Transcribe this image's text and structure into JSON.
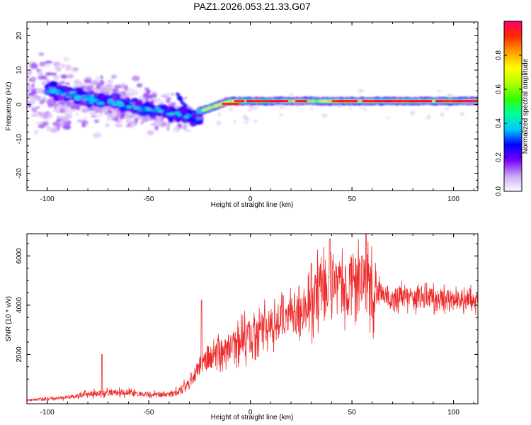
{
  "title": "PAZ1.2026.053.21.33.G07",
  "chart_data": [
    {
      "type": "heatmap",
      "name": "spectrogram",
      "title": "PAZ1.2026.053.21.33.G07",
      "xlabel": "Height of straight line (km)",
      "ylabel": "Frequency (Hz)",
      "xlim": [
        -110,
        112
      ],
      "ylim": [
        -25,
        24
      ],
      "xticks": [
        -100,
        -50,
        0,
        50,
        100
      ],
      "yticks": [
        -20,
        -10,
        0,
        10,
        20
      ],
      "colorbar": {
        "label": "Normalized spectral amplitude",
        "range": [
          0,
          1
        ],
        "ticks": [
          "0.0",
          "0.2",
          "0.4",
          "0.6",
          "0.8"
        ],
        "colors": [
          "#ffffff",
          "#c9a6f2",
          "#7b00ff",
          "#0000ff",
          "#00c8ff",
          "#00ff9a",
          "#33ff00",
          "#b4ff00",
          "#ffff00",
          "#ffa000",
          "#ff2a00",
          "#ff0066"
        ]
      },
      "features": [
        {
          "segment": "scattered",
          "x_range": [
            -110,
            -30
          ],
          "freq_center_range": [
            4,
            -3
          ],
          "freq_spread_hz": 6,
          "amplitude": "0.05-0.3"
        },
        {
          "segment": "descending_track",
          "x_range": [
            -100,
            -25
          ],
          "freq_start": 4,
          "freq_end": -4,
          "amplitude": "0.2-0.4"
        },
        {
          "segment": "steady_tone",
          "x_range": [
            -25,
            112
          ],
          "freq_start": -2,
          "freq_end": 1,
          "amplitude": "0.4-1.0"
        }
      ]
    },
    {
      "type": "line",
      "name": "snr",
      "xlabel": "Height of straight line (km)",
      "ylabel": "SNR (10 * v/v)",
      "color": "#ee2a2a",
      "xlim": [
        -110,
        112
      ],
      "ylim": [
        0,
        6900
      ],
      "xticks": [
        -100,
        -50,
        0,
        50,
        100
      ],
      "yticks": [
        2000,
        4000,
        6000
      ],
      "trend_points": {
        "x": [
          -110,
          -90,
          -75,
          -60,
          -45,
          -38,
          -30,
          -25,
          -20,
          -10,
          0,
          10,
          20,
          30,
          35,
          45,
          55,
          65,
          75,
          90,
          100,
          112
        ],
        "y": [
          150,
          250,
          450,
          450,
          350,
          400,
          800,
          1600,
          1900,
          2300,
          2800,
          3200,
          3500,
          4000,
          4600,
          4800,
          4800,
          4400,
          4300,
          4300,
          4200,
          4300
        ]
      },
      "peak_points": {
        "x": [
          -73,
          -24,
          16,
          30,
          39,
          55,
          57
        ],
        "y": [
          2000,
          4200,
          4400,
          5700,
          6700,
          6000,
          6900
        ]
      }
    }
  ]
}
